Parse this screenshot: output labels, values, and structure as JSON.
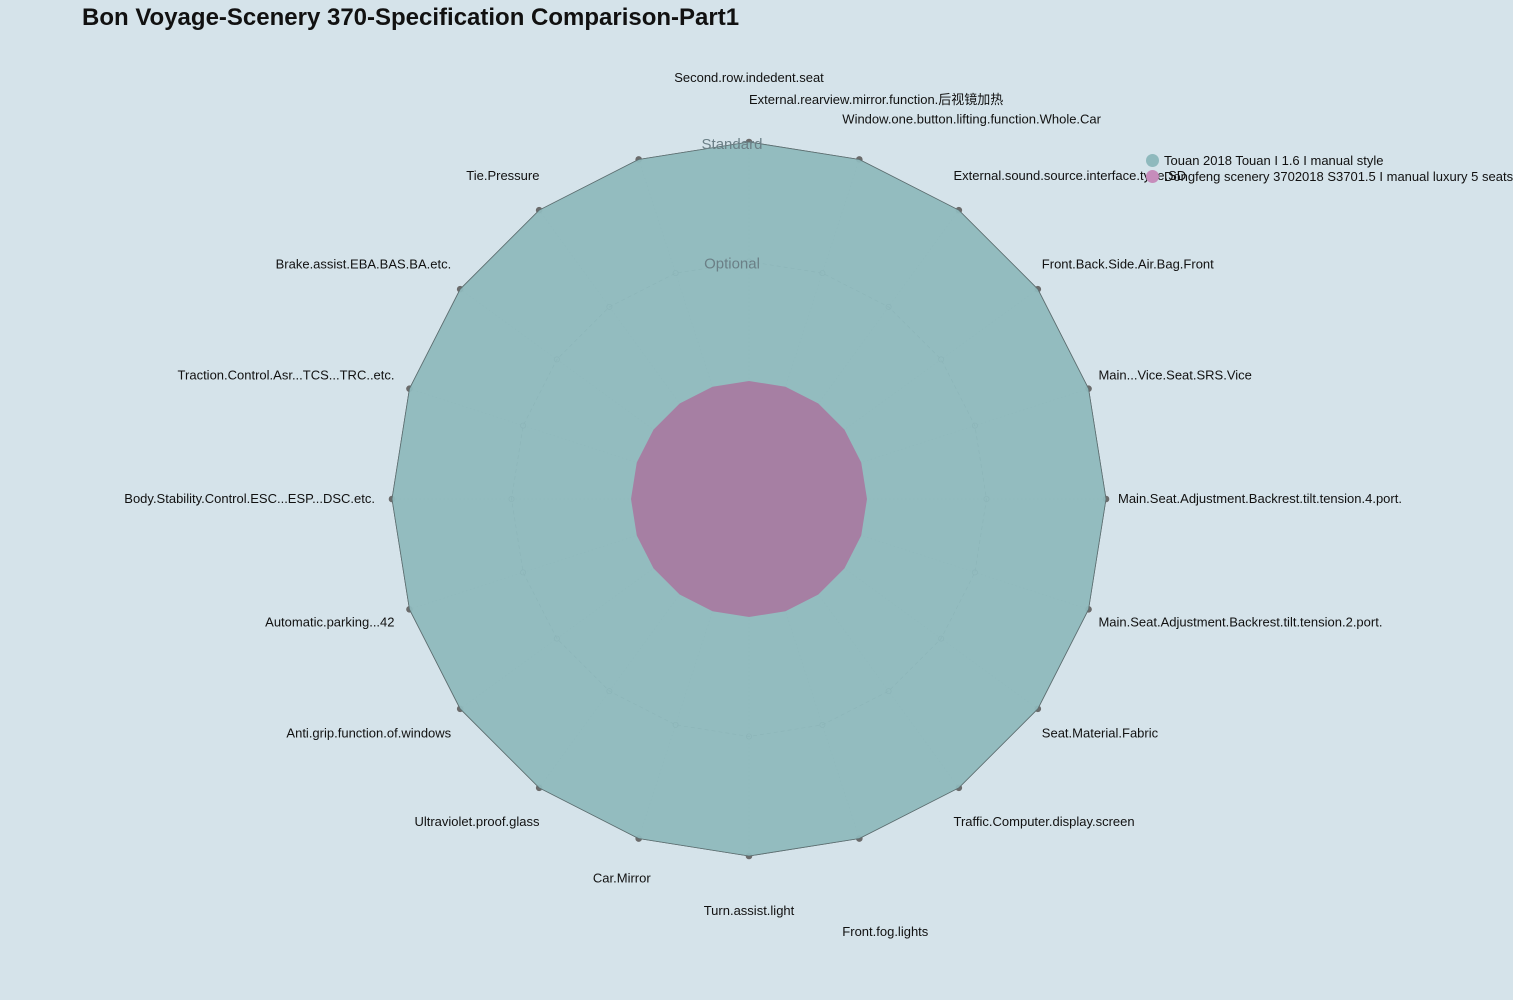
{
  "chart_data": {
    "type": "radar",
    "title": "Bon Voyage-Scenery 370-Specification Comparison-Part1",
    "axes": [
      "Second.row.indedent.seat",
      "Window.one.button.lifting.function.Whole.Car",
      "External.sound.source.interface.type.SD",
      "Front.Back.Side.Air.Bag.Front",
      "Main...Vice.Seat.SRS.Vice",
      "Main.Seat.Adjustment.Backrest.tilt.tension.4.port.",
      "Main.Seat.Adjustment.Backrest.tilt.tension.2.port.",
      "Seat.Material.Fabric",
      "Traffic.Computer.display.screen",
      "Front.fog.lights",
      "Turn.assist.light",
      "Car.Mirror",
      "Ultraviolet.proof.glass",
      "Anti.grip.function.of.windows",
      "Automatic.parking...42",
      "Body.Stability.Control.ESC...ESP...DSC.etc.",
      "Traction.Control.Asr...TCS...TRC..etc.",
      "Brake.assist.EBA.BAS.BA.etc.",
      "Tie.Pressure",
      "External.rearview.mirror.function.后视镜加热"
    ],
    "levels": [
      "",
      "Optional",
      "Standard"
    ],
    "series": [
      {
        "name": "Touan 2018 Touan I 1.6 I manual style",
        "color": "#8fb9bd",
        "values": [
          2,
          2,
          2,
          2,
          2,
          2,
          2,
          2,
          2,
          2,
          2,
          2,
          2,
          2,
          2,
          2,
          2,
          2,
          2,
          2
        ]
      },
      {
        "name": "Dongfeng scenery 3702018 S3701.5 I manual luxury 5 seats",
        "color": "#c68cbb",
        "values": [
          0,
          0,
          0,
          0,
          0,
          0,
          0,
          0,
          0,
          0,
          0,
          0,
          0,
          0,
          0,
          0,
          0,
          0,
          0,
          0
        ]
      }
    ],
    "range": [
      0,
      2
    ],
    "legend_position": "top-right"
  },
  "colors": {
    "background": "#d5e3ea",
    "series1_fill": "#8fb9bd",
    "series2_fill": "#a67fa3",
    "grid": "#6f8c90"
  }
}
